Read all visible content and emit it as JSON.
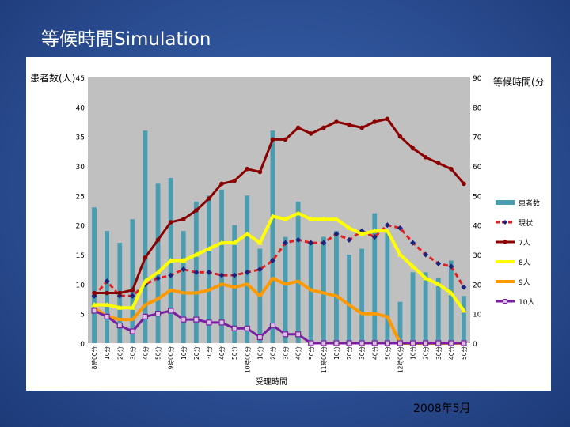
{
  "slide": {
    "title": "等候時間Simulation",
    "footer_date": "2008年5月"
  },
  "colors": {
    "background": "#2c4f94",
    "plot_area": "#c0c0c0",
    "bars": "#4a9db0",
    "current": "#e02020",
    "current_marker": "#1a237e",
    "staff7": "#8b0000",
    "staff8": "#ffff00",
    "staff9": "#ff9900",
    "staff10": "#7b1fa2"
  },
  "chart_data": {
    "type": "bar",
    "title": "",
    "xlabel": "受理時間",
    "ylabel_left": "患者数(人)",
    "ylabel_right": "等候時間(分",
    "ylim_left": [
      0,
      45
    ],
    "ylim_right": [
      0,
      90
    ],
    "yticks_left": [
      0,
      5,
      10,
      15,
      20,
      25,
      30,
      35,
      40,
      45
    ],
    "yticks_right": [
      0,
      10,
      20,
      30,
      40,
      50,
      60,
      70,
      80,
      90
    ],
    "grid": false,
    "legend_position": "right",
    "categories": [
      "8時00分",
      "10分",
      "20分",
      "30分",
      "40分",
      "50分",
      "9時00分",
      "10分",
      "20分",
      "30分",
      "40分",
      "50分",
      "10時00分",
      "10分",
      "20分",
      "30分",
      "40分",
      "50分",
      "11時00分",
      "10分",
      "20分",
      "30分",
      "40分",
      "50分",
      "12時00分",
      "10分",
      "20分",
      "30分",
      "40分",
      "50分"
    ],
    "bar_series": {
      "name": "患者数",
      "axis": "left",
      "values": [
        23,
        19,
        17,
        21,
        36,
        27,
        28,
        19,
        24,
        25,
        26,
        20,
        25,
        16,
        36,
        18,
        24,
        17,
        18,
        19,
        15,
        16,
        22,
        19,
        7,
        12,
        12,
        11,
        14,
        8
      ]
    },
    "series": [
      {
        "name": "現状",
        "axis": "right",
        "values": [
          16,
          21,
          16,
          16,
          20,
          22,
          23,
          25,
          24,
          24,
          23,
          23,
          24,
          25,
          28,
          34,
          35,
          34,
          34,
          37,
          35,
          38,
          36,
          40,
          39,
          34,
          30,
          27,
          26,
          19
        ]
      },
      {
        "name": "7人",
        "axis": "right",
        "values": [
          17,
          17,
          17,
          18,
          29,
          35,
          41,
          42,
          45,
          49,
          54,
          55,
          59,
          58,
          69,
          69,
          73,
          71,
          73,
          75,
          74,
          73,
          75,
          76,
          70,
          66,
          63,
          61,
          59,
          54
        ]
      },
      {
        "name": "8人",
        "axis": "right",
        "values": [
          13,
          13,
          12,
          12,
          21,
          24,
          28,
          28,
          30,
          32,
          34,
          34,
          37,
          34,
          43,
          42,
          44,
          42,
          42,
          42,
          39,
          37,
          38,
          38,
          30,
          26,
          22,
          20,
          17,
          11
        ]
      },
      {
        "name": "9人",
        "axis": "right",
        "values": [
          12,
          9,
          8,
          8,
          13,
          15,
          18,
          17,
          17,
          18,
          20,
          19,
          20,
          16,
          22,
          20,
          21,
          18,
          17,
          16,
          13,
          10,
          10,
          9,
          0,
          0,
          0,
          0,
          0,
          0
        ]
      },
      {
        "name": "10人",
        "axis": "right",
        "values": [
          11,
          9,
          6,
          4,
          9,
          10,
          11,
          8,
          8,
          7,
          7,
          5,
          5,
          2,
          6,
          3,
          3,
          0,
          0,
          0,
          0,
          0,
          0,
          0,
          0,
          0,
          0,
          0,
          0,
          0
        ]
      }
    ]
  }
}
